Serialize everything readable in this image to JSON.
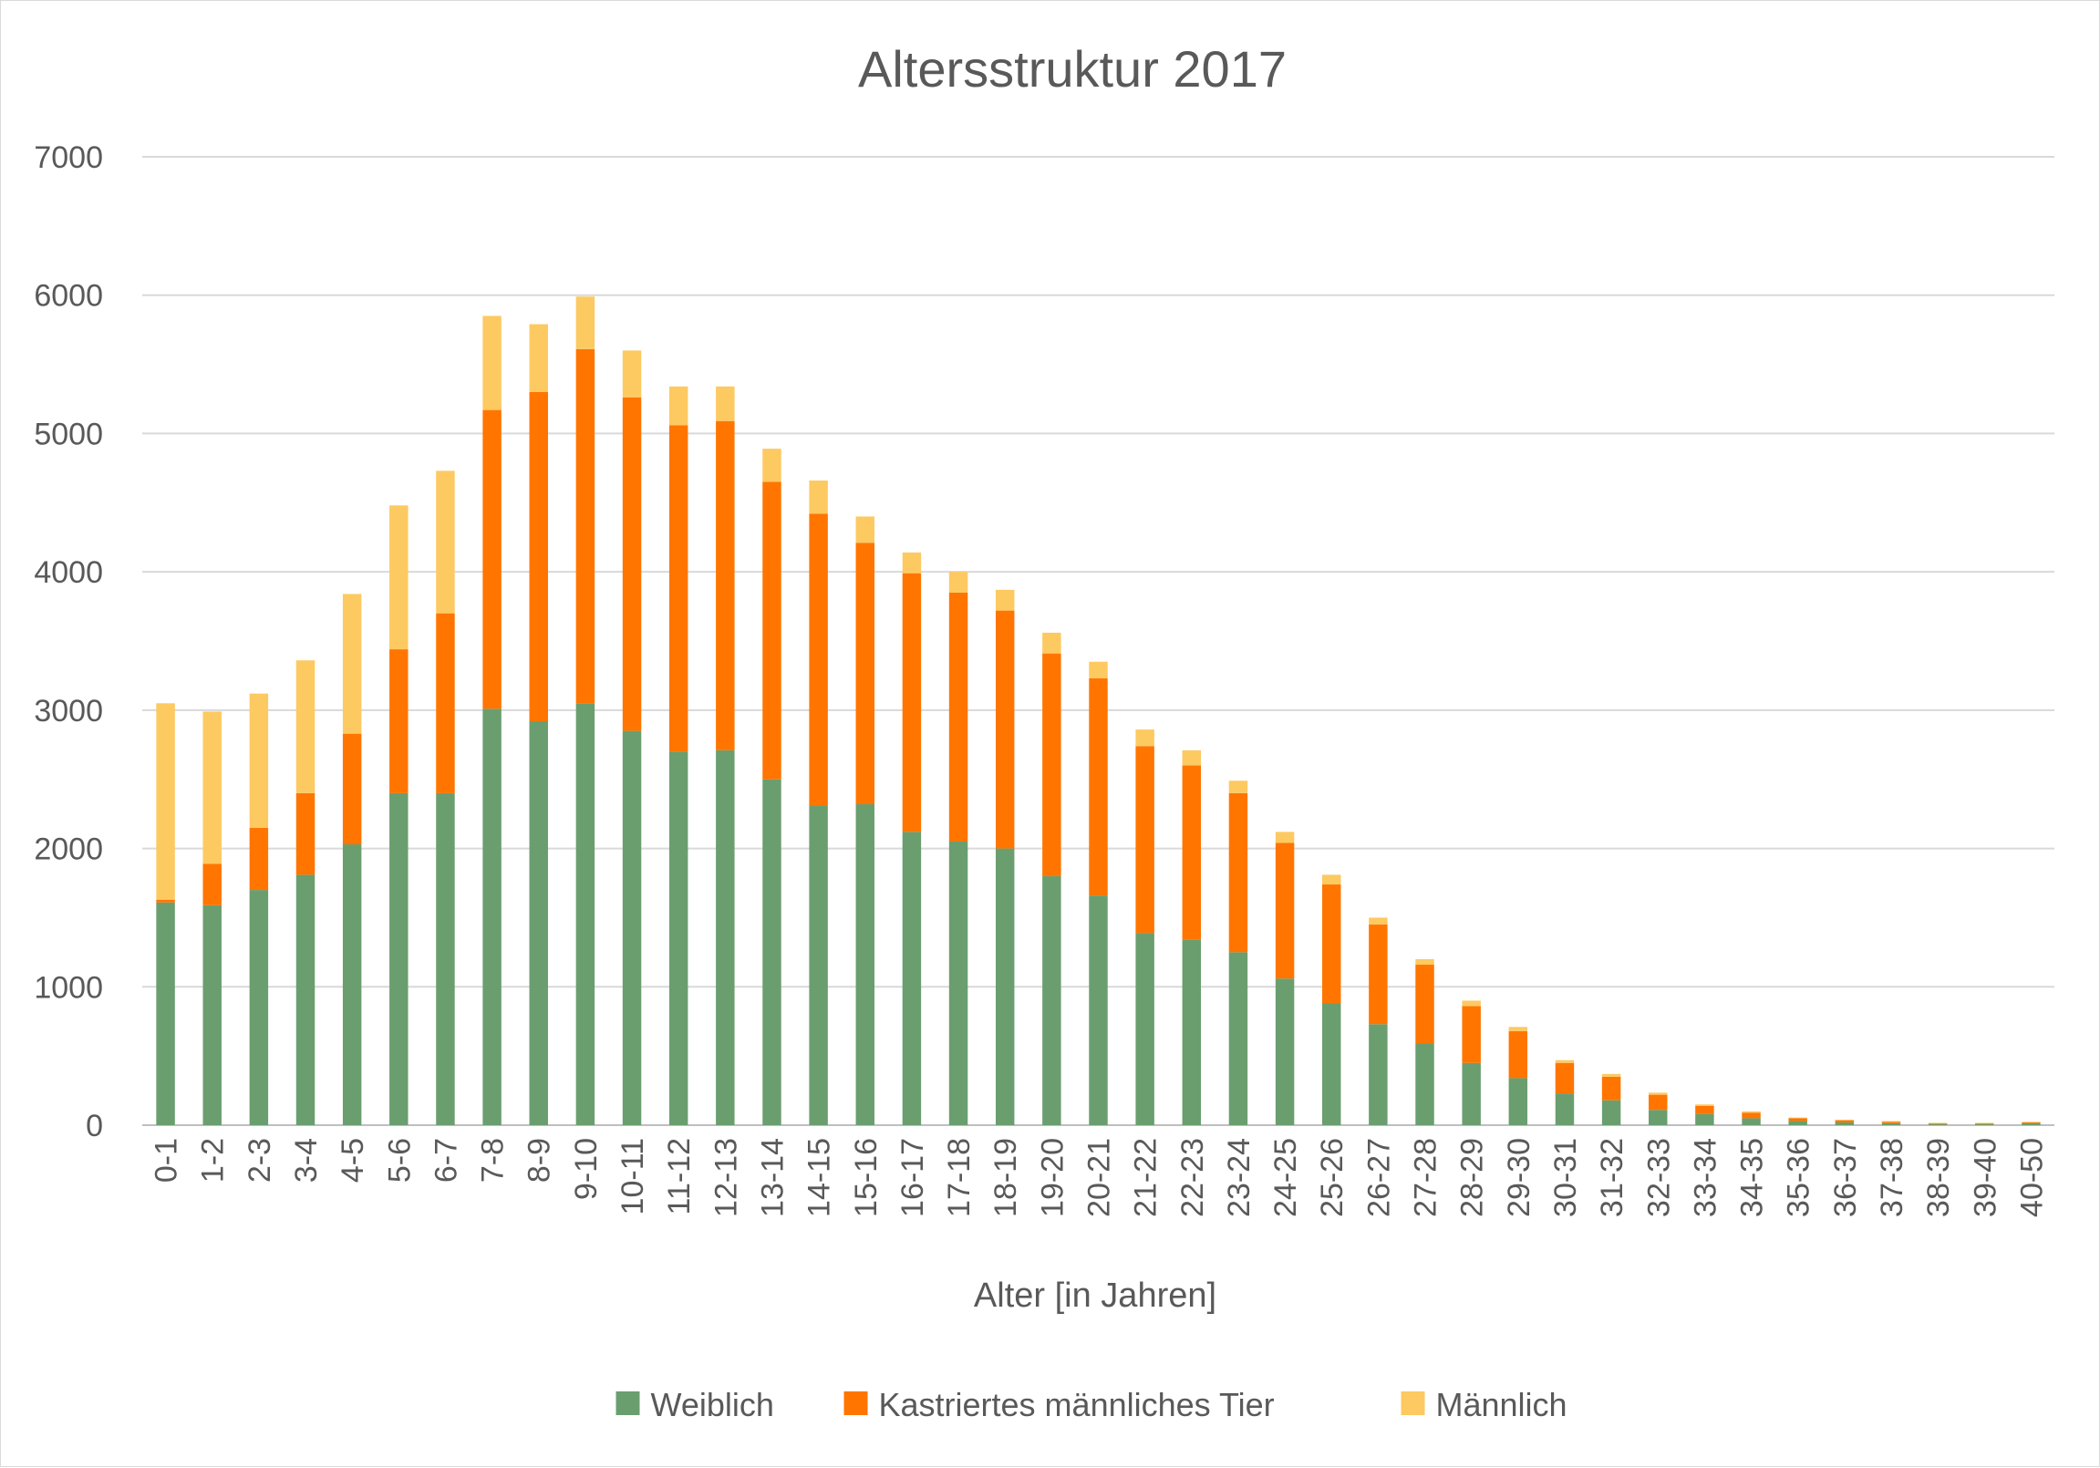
{
  "chart_data": {
    "type": "bar",
    "stacked": true,
    "title": "Altersstruktur 2017",
    "xlabel": "Alter [in Jahren]",
    "ylabel": "",
    "ylim": [
      0,
      7000
    ],
    "yticks": [
      0,
      1000,
      2000,
      3000,
      4000,
      5000,
      6000,
      7000
    ],
    "grid": true,
    "legend_position": "bottom",
    "categories": [
      "0-1",
      "1-2",
      "2-3",
      "3-4",
      "4-5",
      "5-6",
      "6-7",
      "7-8",
      "8-9",
      "9-10",
      "10-11",
      "11-12",
      "12-13",
      "13-14",
      "14-15",
      "15-16",
      "16-17",
      "17-18",
      "18-19",
      "19-20",
      "20-21",
      "21-22",
      "22-23",
      "23-24",
      "24-25",
      "25-26",
      "26-27",
      "27-28",
      "28-29",
      "29-30",
      "30-31",
      "31-32",
      "32-33",
      "33-34",
      "34-35",
      "35-36",
      "36-37",
      "37-38",
      "38-39",
      "39-40",
      "40-50"
    ],
    "series": [
      {
        "name": "Weiblich",
        "color": "#6a9e6f",
        "values": [
          1610,
          1590,
          1700,
          1810,
          2030,
          2400,
          2400,
          3010,
          2920,
          3050,
          2850,
          2700,
          2710,
          2500,
          2310,
          2320,
          2120,
          2050,
          2000,
          1800,
          1660,
          1390,
          1340,
          1250,
          1060,
          880,
          730,
          590,
          450,
          340,
          230,
          180,
          110,
          80,
          50,
          30,
          20,
          15,
          8,
          8,
          15
        ]
      },
      {
        "name": "Kastriertes männliches Tier",
        "color": "#ff7500",
        "values": [
          20,
          300,
          450,
          590,
          800,
          1040,
          1300,
          2160,
          2380,
          2560,
          2410,
          2360,
          2380,
          2150,
          2110,
          1890,
          1870,
          1800,
          1720,
          1610,
          1570,
          1350,
          1260,
          1150,
          980,
          860,
          720,
          570,
          410,
          340,
          220,
          170,
          110,
          60,
          40,
          20,
          15,
          10,
          5,
          5,
          5
        ]
      },
      {
        "name": "Männlich",
        "color": "#fdc961",
        "values": [
          1420,
          1100,
          970,
          960,
          1010,
          1040,
          1030,
          680,
          490,
          380,
          340,
          280,
          250,
          240,
          240,
          190,
          150,
          150,
          150,
          150,
          120,
          120,
          110,
          90,
          80,
          70,
          50,
          40,
          40,
          30,
          20,
          20,
          15,
          10,
          10,
          5,
          5,
          5,
          4,
          4,
          5
        ]
      }
    ]
  }
}
